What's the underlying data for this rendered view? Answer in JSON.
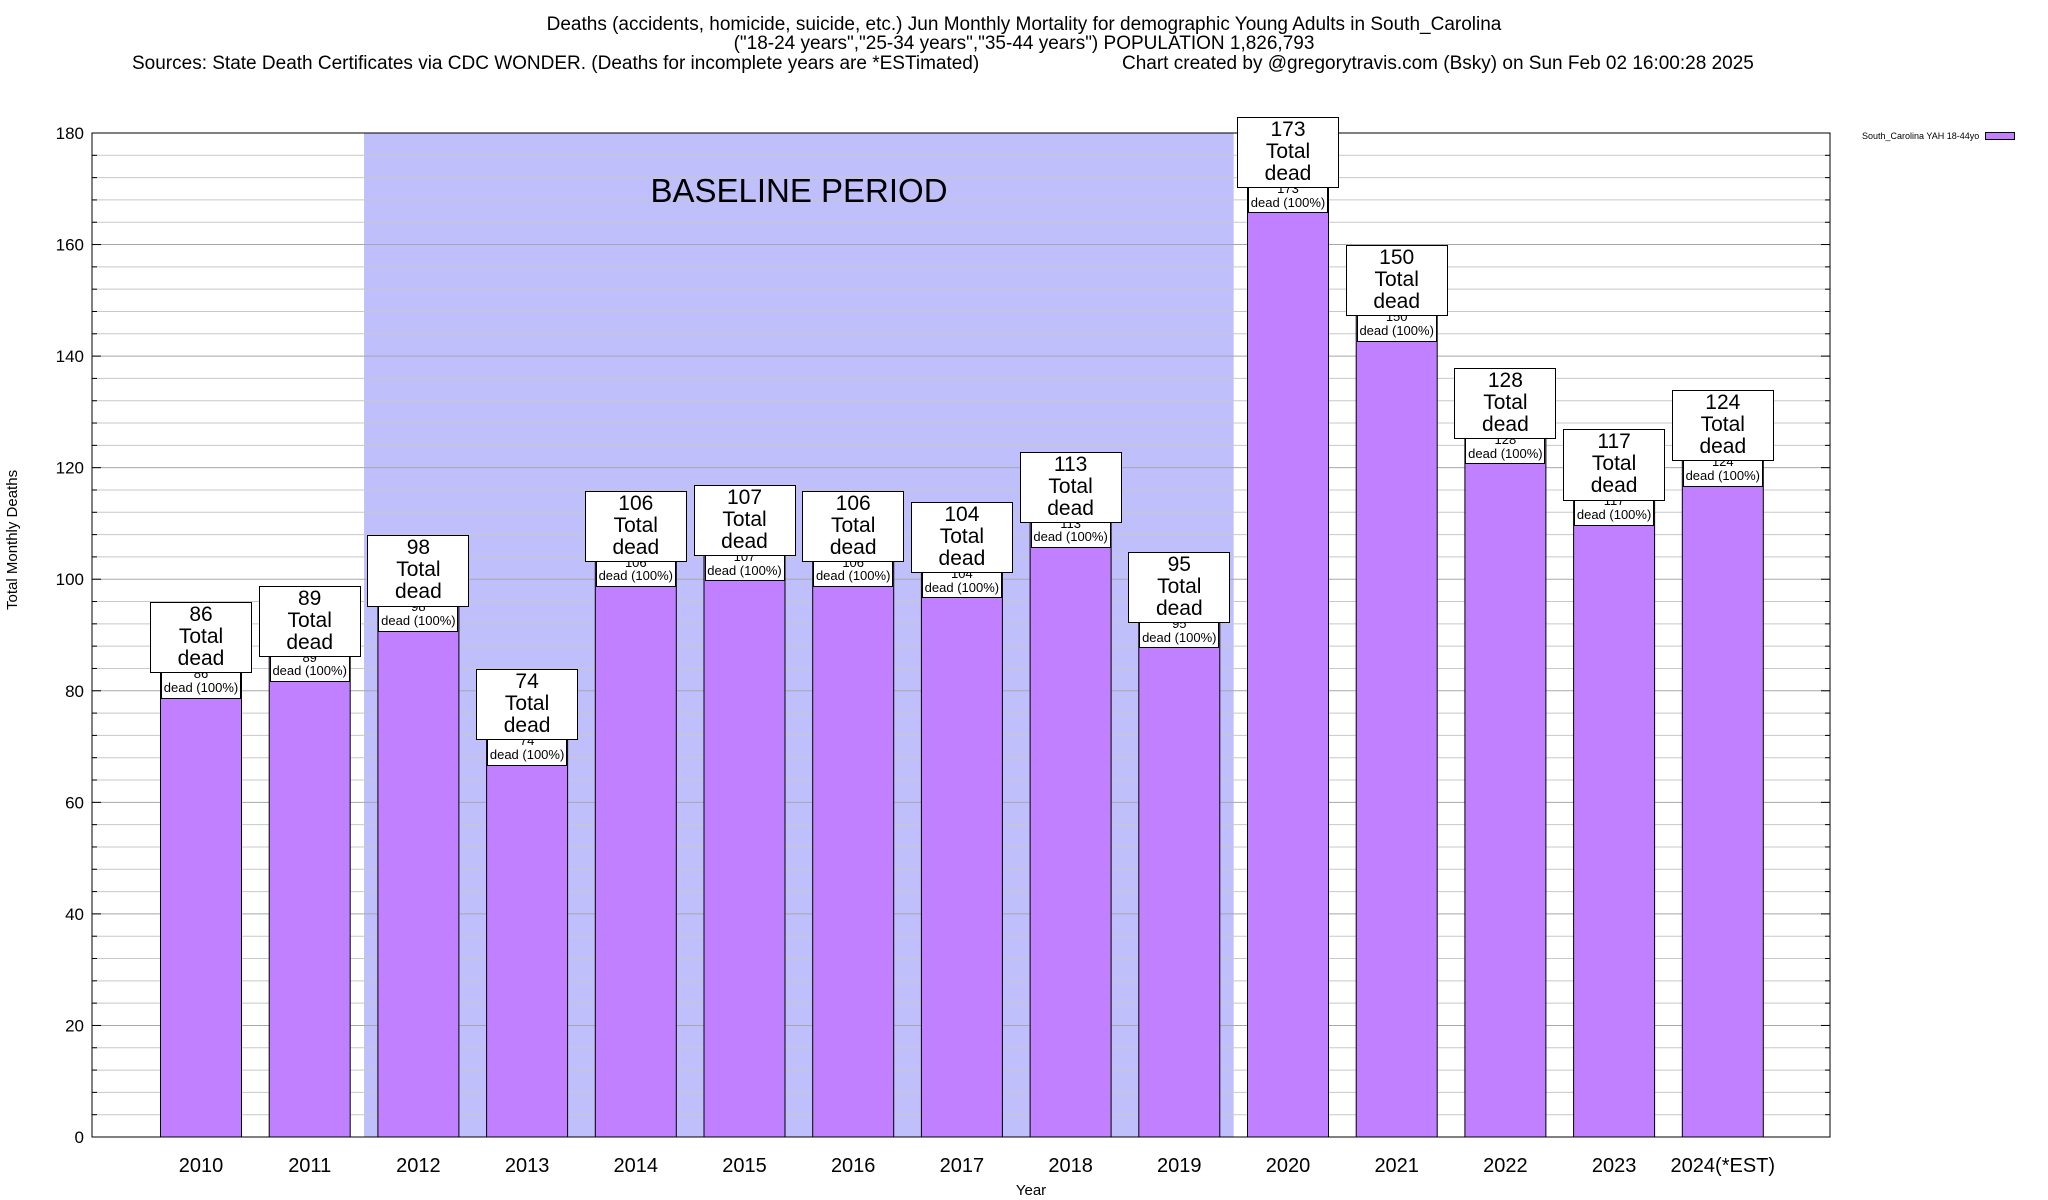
{
  "title": {
    "line1": "Deaths (accidents, homicide, suicide, etc.) Jun Monthly Mortality for demographic Young Adults in South_Carolina",
    "line2": "(\"18-24 years\",\"25-34 years\",\"35-44 years\") POPULATION 1,826,793",
    "line3_left": "Sources: State Death Certificates via CDC WONDER. (Deaths for incomplete years are *ESTimated)",
    "line3_right": "Chart created by @gregorytravis.com (Bsky) on Sun Feb 02 16:00:28 2025"
  },
  "chart_data": {
    "type": "bar",
    "title": "Deaths (accidents, homicide, suicide, etc.) Jun Monthly Mortality for demographic Young Adults in South_Carolina",
    "xlabel": "Year",
    "ylabel": "Total Monthly Deaths",
    "ylim": [
      0,
      180
    ],
    "yticks": [
      0,
      20,
      40,
      60,
      80,
      100,
      120,
      140,
      160,
      180
    ],
    "grid": true,
    "legend_position": "top-right",
    "categories": [
      "2010",
      "2011",
      "2012",
      "2013",
      "2014",
      "2015",
      "2016",
      "2017",
      "2018",
      "2019",
      "2020",
      "2021",
      "2022",
      "2023",
      "2024(*EST)"
    ],
    "series": [
      {
        "name": "South_Carolina YAH 18-44yo",
        "color": "#c080ff",
        "values": [
          86,
          89,
          98,
          74,
          106,
          107,
          106,
          104,
          113,
          95,
          173,
          150,
          128,
          117,
          124
        ]
      }
    ],
    "bar_top_label_text": "Total dead",
    "bar_inner_label_text": "dead (100%)",
    "annotation": "BASELINE PERIOD",
    "baseline_range": [
      "2012",
      "2019"
    ],
    "baseline_color": "#bfbffb"
  }
}
